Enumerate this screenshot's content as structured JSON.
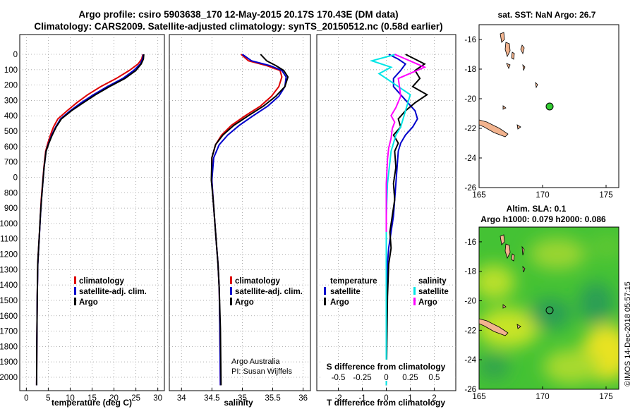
{
  "title_line1": "Argo profile: csiro 5903638_170 12-May-2015 20.17S 170.43E (DM data)",
  "title_line2": "Climatology: CARS2009. Satellite-adjusted climatology: synTS_20150512.nc (0.58d earlier)",
  "depth_ticks": [
    "0",
    "100",
    "200",
    "300",
    "400",
    "500",
    "600",
    "700",
    "0",
    "800",
    "900",
    "1000",
    "1100",
    "1200",
    "1300",
    "1400",
    "1500",
    "1600",
    "1700",
    "1800",
    "1900",
    "2000"
  ],
  "temp_panel": {
    "xlabel": "temperature (deg C)",
    "xticks": [
      "0",
      "5",
      "10",
      "15",
      "20",
      "25",
      "30"
    ],
    "legend": [
      "climatology",
      "satellite-adj. clim.",
      "Argo"
    ]
  },
  "sal_panel": {
    "xlabel": "salinity",
    "xticks": [
      "34",
      "34.5",
      "35",
      "35.5",
      "36"
    ],
    "legend": [
      "climatology",
      "satellite-adj. clim.",
      "Argo"
    ],
    "credit1": "Argo Australia",
    "credit2": "PI: Susan Wijffels"
  },
  "diff_panel": {
    "xlabel": "T difference from climatology",
    "xticks": [
      "-2",
      "-1",
      "0",
      "1",
      "2"
    ],
    "s_label": "S difference from climatology",
    "s_ticks": [
      "-0.5",
      "-0.25",
      "0",
      "0.25",
      "0.5"
    ],
    "leg_head_t": "temperature",
    "leg_head_s": "salinity",
    "leg_t": [
      "satellite",
      "Argo"
    ],
    "leg_s": [
      "satellite",
      "Argo"
    ]
  },
  "map_top": {
    "title": "sat. SST: NaN Argo: 26.7",
    "yticks": [
      "-16",
      "-18",
      "-20",
      "-22",
      "-24",
      "-26"
    ],
    "xticks": [
      "165",
      "170",
      "175"
    ]
  },
  "map_bottom": {
    "title1": "Altim. SLA: 0.1",
    "title2": "Argo h1000: 0.079 h2000: 0.086",
    "yticks": [
      "-16",
      "-18",
      "-20",
      "-22",
      "-24",
      "-26"
    ],
    "xticks": [
      "165",
      "170",
      "175"
    ]
  },
  "watermark": "©IMOS 14-Dec-2018 05:57:15",
  "colors": {
    "clim": "#dd0000",
    "sat": "#0000cc",
    "argo": "#000000",
    "cyan": "#00e5e5",
    "magenta": "#ff00ff",
    "island": "#f2b38e",
    "dot": "#33cc33"
  },
  "chart_data": [
    {
      "type": "line",
      "title": "temperature profile",
      "xlabel": "temperature (deg C)",
      "ylabel": "depth",
      "xlim": [
        -1.5,
        31.5
      ],
      "ylim": [
        2050,
        0
      ],
      "series": [
        {
          "name": "climatology",
          "color": "#dd0000",
          "x": [
            26.6,
            26.3,
            25.5,
            23.5,
            20.5,
            17,
            14,
            11.5,
            9.3,
            7.2,
            6.2,
            5.5,
            4.9,
            4.4,
            4.0,
            3.7,
            3.4,
            3.2,
            3.0,
            2.8,
            2.6,
            2.5,
            2.4,
            2.35
          ],
          "y": [
            0,
            30,
            60,
            100,
            150,
            200,
            250,
            300,
            350,
            400,
            450,
            500,
            550,
            600,
            700,
            800,
            900,
            1000,
            1100,
            1200,
            1300,
            1500,
            1800,
            2050
          ]
        },
        {
          "name": "satellite-adj. clim.",
          "color": "#0000cc",
          "x": [
            26.7,
            26.5,
            26,
            24.5,
            22,
            18.5,
            15.3,
            12.5,
            10,
            7.8,
            6.7,
            5.8,
            5.1,
            4.5,
            4.05,
            3.75,
            3.45,
            3.22,
            3.02,
            2.82,
            2.62,
            2.5,
            2.4,
            2.35
          ],
          "y": [
            0,
            30,
            60,
            100,
            150,
            200,
            250,
            300,
            350,
            400,
            450,
            500,
            550,
            600,
            700,
            800,
            900,
            1000,
            1100,
            1200,
            1300,
            1500,
            1800,
            2050
          ]
        },
        {
          "name": "Argo",
          "color": "#000000",
          "x": [
            26.8,
            26.7,
            26.2,
            25,
            22.5,
            19,
            15.8,
            13,
            10.3,
            8,
            6.8,
            5.9,
            5.15,
            4.5,
            4.05,
            3.75,
            3.45,
            3.2,
            3.0,
            2.8,
            2.6,
            2.5,
            2.4,
            2.35
          ],
          "y": [
            0,
            30,
            60,
            100,
            150,
            200,
            250,
            300,
            350,
            400,
            450,
            500,
            550,
            600,
            700,
            800,
            900,
            1000,
            1100,
            1200,
            1300,
            1500,
            1800,
            2050
          ]
        }
      ]
    },
    {
      "type": "line",
      "title": "salinity profile",
      "xlabel": "salinity",
      "ylabel": "depth",
      "xlim": [
        33.8,
        36.12
      ],
      "ylim": [
        2050,
        0
      ],
      "series": [
        {
          "name": "climatology",
          "color": "#dd0000",
          "x": [
            34.98,
            35.1,
            35.4,
            35.62,
            35.65,
            35.6,
            35.48,
            35.3,
            35.05,
            34.82,
            34.66,
            34.56,
            34.5,
            34.5,
            34.52,
            34.54,
            34.56,
            34.58,
            34.6,
            34.62,
            34.63,
            34.64
          ],
          "y": [
            0,
            40,
            70,
            100,
            140,
            200,
            260,
            320,
            380,
            440,
            500,
            560,
            640,
            780,
            900,
            1000,
            1100,
            1200,
            1300,
            1450,
            1700,
            2050
          ]
        },
        {
          "name": "satellite-adj. clim.",
          "color": "#0000cc",
          "x": [
            35.0,
            35.15,
            35.45,
            35.65,
            35.72,
            35.7,
            35.6,
            35.42,
            35.18,
            34.95,
            34.76,
            34.62,
            34.53,
            34.5,
            34.52,
            34.54,
            34.56,
            34.58,
            34.6,
            34.62,
            34.63,
            34.64
          ],
          "y": [
            0,
            40,
            70,
            100,
            140,
            200,
            260,
            320,
            380,
            440,
            500,
            560,
            640,
            780,
            900,
            1000,
            1100,
            1200,
            1300,
            1450,
            1700,
            2050
          ]
        },
        {
          "name": "Argo",
          "color": "#000000",
          "x": [
            35.3,
            35.4,
            35.55,
            35.68,
            35.75,
            35.7,
            35.55,
            35.35,
            35.1,
            34.86,
            34.68,
            34.56,
            34.5,
            34.49,
            34.52,
            34.54,
            34.56,
            34.58,
            34.6,
            34.62,
            34.64,
            34.65
          ],
          "y": [
            0,
            40,
            70,
            100,
            140,
            200,
            260,
            320,
            380,
            440,
            500,
            560,
            640,
            780,
            900,
            1000,
            1100,
            1200,
            1300,
            1450,
            1700,
            2050
          ]
        }
      ]
    },
    {
      "type": "line",
      "title": "difference from climatology",
      "xlabel": "T difference from climatology",
      "ylabel": "depth",
      "xlim": [
        -2.9,
        2.9
      ],
      "ylim": [
        2050,
        0
      ],
      "series": [
        {
          "name": "temperature satellite",
          "color": "#0000cc",
          "x": [
            0.1,
            0.5,
            0.8,
            0.6,
            0.3,
            0.3,
            0.6,
            0.9,
            1.2,
            1.3,
            1.1,
            0.8,
            0.6,
            0.5,
            0.45,
            0.4,
            0.35,
            0.3,
            0.2,
            0.1,
            0.05,
            0.02,
            0
          ],
          "y": [
            0,
            30,
            60,
            100,
            150,
            200,
            250,
            300,
            350,
            400,
            450,
            500,
            550,
            600,
            700,
            800,
            900,
            1000,
            1100,
            1200,
            1300,
            1500,
            2050
          ]
        },
        {
          "name": "temperature Argo",
          "color": "#000000",
          "x": [
            0.8,
            1.2,
            1.6,
            1.2,
            1.4,
            1.1,
            1.7,
            1.2,
            0.8,
            0.5,
            0.6,
            0.3,
            0.5,
            0.35,
            0.4,
            0.3,
            0.35,
            0.25,
            0.15,
            0.2,
            0.1,
            0.05,
            0
          ],
          "y": [
            0,
            30,
            60,
            100,
            150,
            200,
            250,
            300,
            350,
            400,
            450,
            500,
            550,
            600,
            700,
            800,
            900,
            1000,
            1100,
            1200,
            1300,
            1500,
            2050
          ]
        },
        {
          "name": "salinity satellite",
          "color": "#00e5e5",
          "x": [
            0.4,
            -0.6,
            0.2,
            -0.3,
            0.1,
            0.5,
            1.0,
            0.9,
            0.8,
            0.7,
            0.6,
            0.4,
            0.2,
            0.05,
            0,
            0,
            0,
            0,
            0,
            0
          ],
          "y": [
            0,
            40,
            80,
            120,
            160,
            200,
            250,
            300,
            350,
            400,
            450,
            500,
            600,
            800,
            1000,
            1100,
            1200,
            1300,
            1500,
            2050
          ]
        },
        {
          "name": "salinity Argo",
          "color": "#ff00ff",
          "x": [
            0.35,
            1.6,
            0.5,
            0.55,
            0.6,
            0.4,
            0.2,
            0.35,
            0.25,
            0.2,
            0.1,
            0.05,
            0,
            0,
            0
          ],
          "y": [
            0,
            80,
            150,
            200,
            260,
            330,
            380,
            420,
            460,
            520,
            580,
            650,
            800,
            1000,
            1100
          ]
        }
      ]
    }
  ]
}
